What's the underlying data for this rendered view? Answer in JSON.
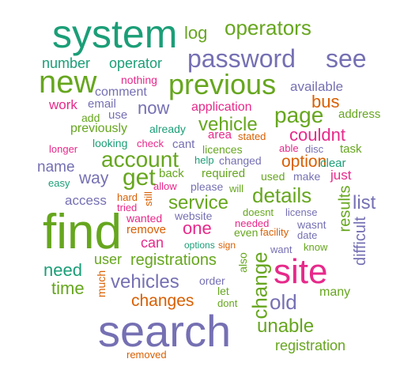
{
  "colors": {
    "teal": "#1b9e77",
    "green": "#66a61e",
    "purple": "#7570b3",
    "magenta": "#e7298a",
    "orange": "#d95f02",
    "background": "#ffffff"
  },
  "words": [
    {
      "text": "system",
      "color": "teal",
      "weight": 5,
      "vertical": false
    },
    {
      "text": "log",
      "color": "green",
      "weight": 2,
      "vertical": false
    },
    {
      "text": "operators",
      "color": "green",
      "weight": 2,
      "vertical": false
    },
    {
      "text": "password",
      "color": "purple",
      "weight": 3,
      "vertical": false
    },
    {
      "text": "see",
      "color": "purple",
      "weight": 3,
      "vertical": false
    },
    {
      "text": "number",
      "color": "teal",
      "weight": 1,
      "vertical": false
    },
    {
      "text": "operator",
      "color": "teal",
      "weight": 1,
      "vertical": false
    },
    {
      "text": "new",
      "color": "green",
      "weight": 4,
      "vertical": false
    },
    {
      "text": "nothing",
      "color": "magenta",
      "weight": 1,
      "vertical": false
    },
    {
      "text": "previous",
      "color": "green",
      "weight": 4,
      "vertical": false
    },
    {
      "text": "available",
      "color": "purple",
      "weight": 1,
      "vertical": false
    },
    {
      "text": "comment",
      "color": "purple",
      "weight": 1,
      "vertical": false
    },
    {
      "text": "bus",
      "color": "orange",
      "weight": 2,
      "vertical": false
    },
    {
      "text": "work",
      "color": "magenta",
      "weight": 1,
      "vertical": false
    },
    {
      "text": "email",
      "color": "purple",
      "weight": 1,
      "vertical": false
    },
    {
      "text": "now",
      "color": "purple",
      "weight": 2,
      "vertical": false
    },
    {
      "text": "application",
      "color": "magenta",
      "weight": 1,
      "vertical": false
    },
    {
      "text": "address",
      "color": "green",
      "weight": 1,
      "vertical": false
    },
    {
      "text": "use",
      "color": "purple",
      "weight": 1,
      "vertical": false
    },
    {
      "text": "page",
      "color": "green",
      "weight": 3,
      "vertical": false
    },
    {
      "text": "add",
      "color": "green",
      "weight": 1,
      "vertical": false
    },
    {
      "text": "vehicle",
      "color": "green",
      "weight": 3,
      "vertical": false
    },
    {
      "text": "couldnt",
      "color": "magenta",
      "weight": 2,
      "vertical": false
    },
    {
      "text": "previously",
      "color": "green",
      "weight": 1,
      "vertical": false
    },
    {
      "text": "already",
      "color": "teal",
      "weight": 1,
      "vertical": false
    },
    {
      "text": "area",
      "color": "magenta",
      "weight": 1,
      "vertical": false
    },
    {
      "text": "stated",
      "color": "orange",
      "weight": 1,
      "vertical": false
    },
    {
      "text": "looking",
      "color": "teal",
      "weight": 1,
      "vertical": false
    },
    {
      "text": "check",
      "color": "magenta",
      "weight": 1,
      "vertical": false
    },
    {
      "text": "cant",
      "color": "purple",
      "weight": 1,
      "vertical": false
    },
    {
      "text": "licences",
      "color": "green",
      "weight": 1,
      "vertical": false
    },
    {
      "text": "able",
      "color": "magenta",
      "weight": 1,
      "vertical": false
    },
    {
      "text": "disc",
      "color": "purple",
      "weight": 1,
      "vertical": false
    },
    {
      "text": "task",
      "color": "green",
      "weight": 1,
      "vertical": false
    },
    {
      "text": "longer",
      "color": "magenta",
      "weight": 1,
      "vertical": false
    },
    {
      "text": "account",
      "color": "green",
      "weight": 3,
      "vertical": false
    },
    {
      "text": "help",
      "color": "teal",
      "weight": 1,
      "vertical": false
    },
    {
      "text": "changed",
      "color": "purple",
      "weight": 1,
      "vertical": false
    },
    {
      "text": "option",
      "color": "orange",
      "weight": 2,
      "vertical": false
    },
    {
      "text": "clear",
      "color": "teal",
      "weight": 1,
      "vertical": false
    },
    {
      "text": "name",
      "color": "purple",
      "weight": 2,
      "vertical": false
    },
    {
      "text": "back",
      "color": "green",
      "weight": 1,
      "vertical": false
    },
    {
      "text": "required",
      "color": "green",
      "weight": 1,
      "vertical": false
    },
    {
      "text": "used",
      "color": "green",
      "weight": 1,
      "vertical": false
    },
    {
      "text": "make",
      "color": "purple",
      "weight": 1,
      "vertical": false
    },
    {
      "text": "just",
      "color": "magenta",
      "weight": 1,
      "vertical": false
    },
    {
      "text": "way",
      "color": "purple",
      "weight": 2,
      "vertical": false
    },
    {
      "text": "get",
      "color": "green",
      "weight": 3,
      "vertical": false
    },
    {
      "text": "easy",
      "color": "teal",
      "weight": 1,
      "vertical": false
    },
    {
      "text": "allow",
      "color": "magenta",
      "weight": 1,
      "vertical": false
    },
    {
      "text": "please",
      "color": "purple",
      "weight": 1,
      "vertical": false
    },
    {
      "text": "will",
      "color": "green",
      "weight": 1,
      "vertical": false
    },
    {
      "text": "details",
      "color": "green",
      "weight": 3,
      "vertical": false
    },
    {
      "text": "results",
      "color": "green",
      "weight": 2,
      "vertical": true
    },
    {
      "text": "list",
      "color": "purple",
      "weight": 2,
      "vertical": false
    },
    {
      "text": "access",
      "color": "purple",
      "weight": 1,
      "vertical": false
    },
    {
      "text": "hard",
      "color": "orange",
      "weight": 1,
      "vertical": false
    },
    {
      "text": "tried",
      "color": "magenta",
      "weight": 1,
      "vertical": false
    },
    {
      "text": "still",
      "color": "orange",
      "weight": 1,
      "vertical": true
    },
    {
      "text": "service",
      "color": "green",
      "weight": 2,
      "vertical": false
    },
    {
      "text": "doesnt",
      "color": "green",
      "weight": 1,
      "vertical": false
    },
    {
      "text": "license",
      "color": "purple",
      "weight": 1,
      "vertical": false
    },
    {
      "text": "find",
      "color": "green",
      "weight": 6,
      "vertical": false
    },
    {
      "text": "wanted",
      "color": "magenta",
      "weight": 1,
      "vertical": false
    },
    {
      "text": "website",
      "color": "purple",
      "weight": 1,
      "vertical": false
    },
    {
      "text": "needed",
      "color": "magenta",
      "weight": 1,
      "vertical": false
    },
    {
      "text": "wasnt",
      "color": "purple",
      "weight": 1,
      "vertical": false
    },
    {
      "text": "remove",
      "color": "orange",
      "weight": 1,
      "vertical": false
    },
    {
      "text": "one",
      "color": "magenta",
      "weight": 2,
      "vertical": false
    },
    {
      "text": "even",
      "color": "green",
      "weight": 1,
      "vertical": false
    },
    {
      "text": "facility",
      "color": "orange",
      "weight": 1,
      "vertical": false
    },
    {
      "text": "date",
      "color": "purple",
      "weight": 1,
      "vertical": false
    },
    {
      "text": "difficult",
      "color": "purple",
      "weight": 2,
      "vertical": true
    },
    {
      "text": "can",
      "color": "magenta",
      "weight": 2,
      "vertical": false
    },
    {
      "text": "options",
      "color": "teal",
      "weight": 1,
      "vertical": false
    },
    {
      "text": "sign",
      "color": "orange",
      "weight": 1,
      "vertical": false
    },
    {
      "text": "want",
      "color": "purple",
      "weight": 1,
      "vertical": false
    },
    {
      "text": "know",
      "color": "green",
      "weight": 1,
      "vertical": false
    },
    {
      "text": "user",
      "color": "green",
      "weight": 2,
      "vertical": false
    },
    {
      "text": "registrations",
      "color": "green",
      "weight": 2,
      "vertical": false
    },
    {
      "text": "also",
      "color": "green",
      "weight": 1,
      "vertical": true
    },
    {
      "text": "change",
      "color": "green",
      "weight": 3,
      "vertical": true
    },
    {
      "text": "need",
      "color": "teal",
      "weight": 2,
      "vertical": false
    },
    {
      "text": "site",
      "color": "magenta",
      "weight": 5,
      "vertical": false
    },
    {
      "text": "much",
      "color": "orange",
      "weight": 1,
      "vertical": true
    },
    {
      "text": "vehicles",
      "color": "purple",
      "weight": 3,
      "vertical": false
    },
    {
      "text": "order",
      "color": "purple",
      "weight": 1,
      "vertical": false
    },
    {
      "text": "time",
      "color": "green",
      "weight": 2,
      "vertical": false
    },
    {
      "text": "let",
      "color": "green",
      "weight": 1,
      "vertical": false
    },
    {
      "text": "many",
      "color": "green",
      "weight": 1,
      "vertical": false
    },
    {
      "text": "changes",
      "color": "orange",
      "weight": 2,
      "vertical": false
    },
    {
      "text": "old",
      "color": "purple",
      "weight": 3,
      "vertical": false
    },
    {
      "text": "dont",
      "color": "green",
      "weight": 1,
      "vertical": false
    },
    {
      "text": "search",
      "color": "purple",
      "weight": 6,
      "vertical": false
    },
    {
      "text": "unable",
      "color": "green",
      "weight": 3,
      "vertical": false
    },
    {
      "text": "registration",
      "color": "green",
      "weight": 2,
      "vertical": false
    },
    {
      "text": "removed",
      "color": "orange",
      "weight": 1,
      "vertical": false
    }
  ]
}
